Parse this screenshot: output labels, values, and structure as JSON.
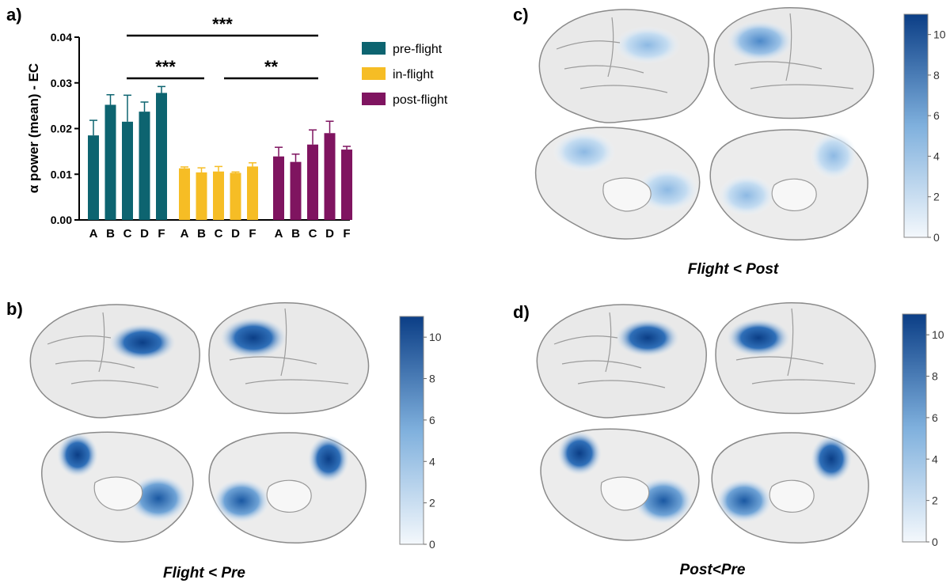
{
  "panels": {
    "a": "a)",
    "b": "b)",
    "c": "c)",
    "d": "d)"
  },
  "captions": {
    "b": "Flight < Pre",
    "c": "Flight < Post",
    "d": "Post<Pre"
  },
  "colorbar": {
    "ticks_bd": [
      "0",
      "2",
      "4",
      "6",
      "8",
      "10"
    ],
    "ticks_c": [
      "0",
      "2",
      "4",
      "6",
      "8",
      "10"
    ],
    "colors": {
      "low": "#f4f8fc",
      "high": "#0b3e86"
    }
  },
  "chart_data": {
    "type": "bar",
    "ylabel": "α power (mean) - EC",
    "xlabel": "",
    "ylim": [
      0,
      0.04
    ],
    "yticks": [
      "0.00",
      "0.01",
      "0.02",
      "0.03",
      "0.04"
    ],
    "categories": [
      "A",
      "B",
      "C",
      "D",
      "F"
    ],
    "series": [
      {
        "name": "pre-flight",
        "color": "#0d6470",
        "values": [
          0.0185,
          0.0252,
          0.0215,
          0.0237,
          0.0278
        ],
        "errors": [
          0.0033,
          0.0022,
          0.0058,
          0.0021,
          0.0014
        ]
      },
      {
        "name": "in-flight",
        "color": "#f6bd25",
        "values": [
          0.0113,
          0.0104,
          0.0106,
          0.0103,
          0.0117
        ],
        "errors": [
          0.0003,
          0.001,
          0.0011,
          0.0002,
          0.0008
        ]
      },
      {
        "name": "post-flight",
        "color": "#7f1460",
        "values": [
          0.0139,
          0.0127,
          0.0165,
          0.019,
          0.0154
        ],
        "errors": [
          0.002,
          0.0017,
          0.0032,
          0.0026,
          0.0007
        ]
      }
    ],
    "significance": [
      {
        "label": "***",
        "from": 0,
        "to": 1
      },
      {
        "label": "***",
        "from": 0,
        "to": 2
      },
      {
        "label": "**",
        "from": 1,
        "to": 2
      }
    ],
    "legend": "right"
  }
}
